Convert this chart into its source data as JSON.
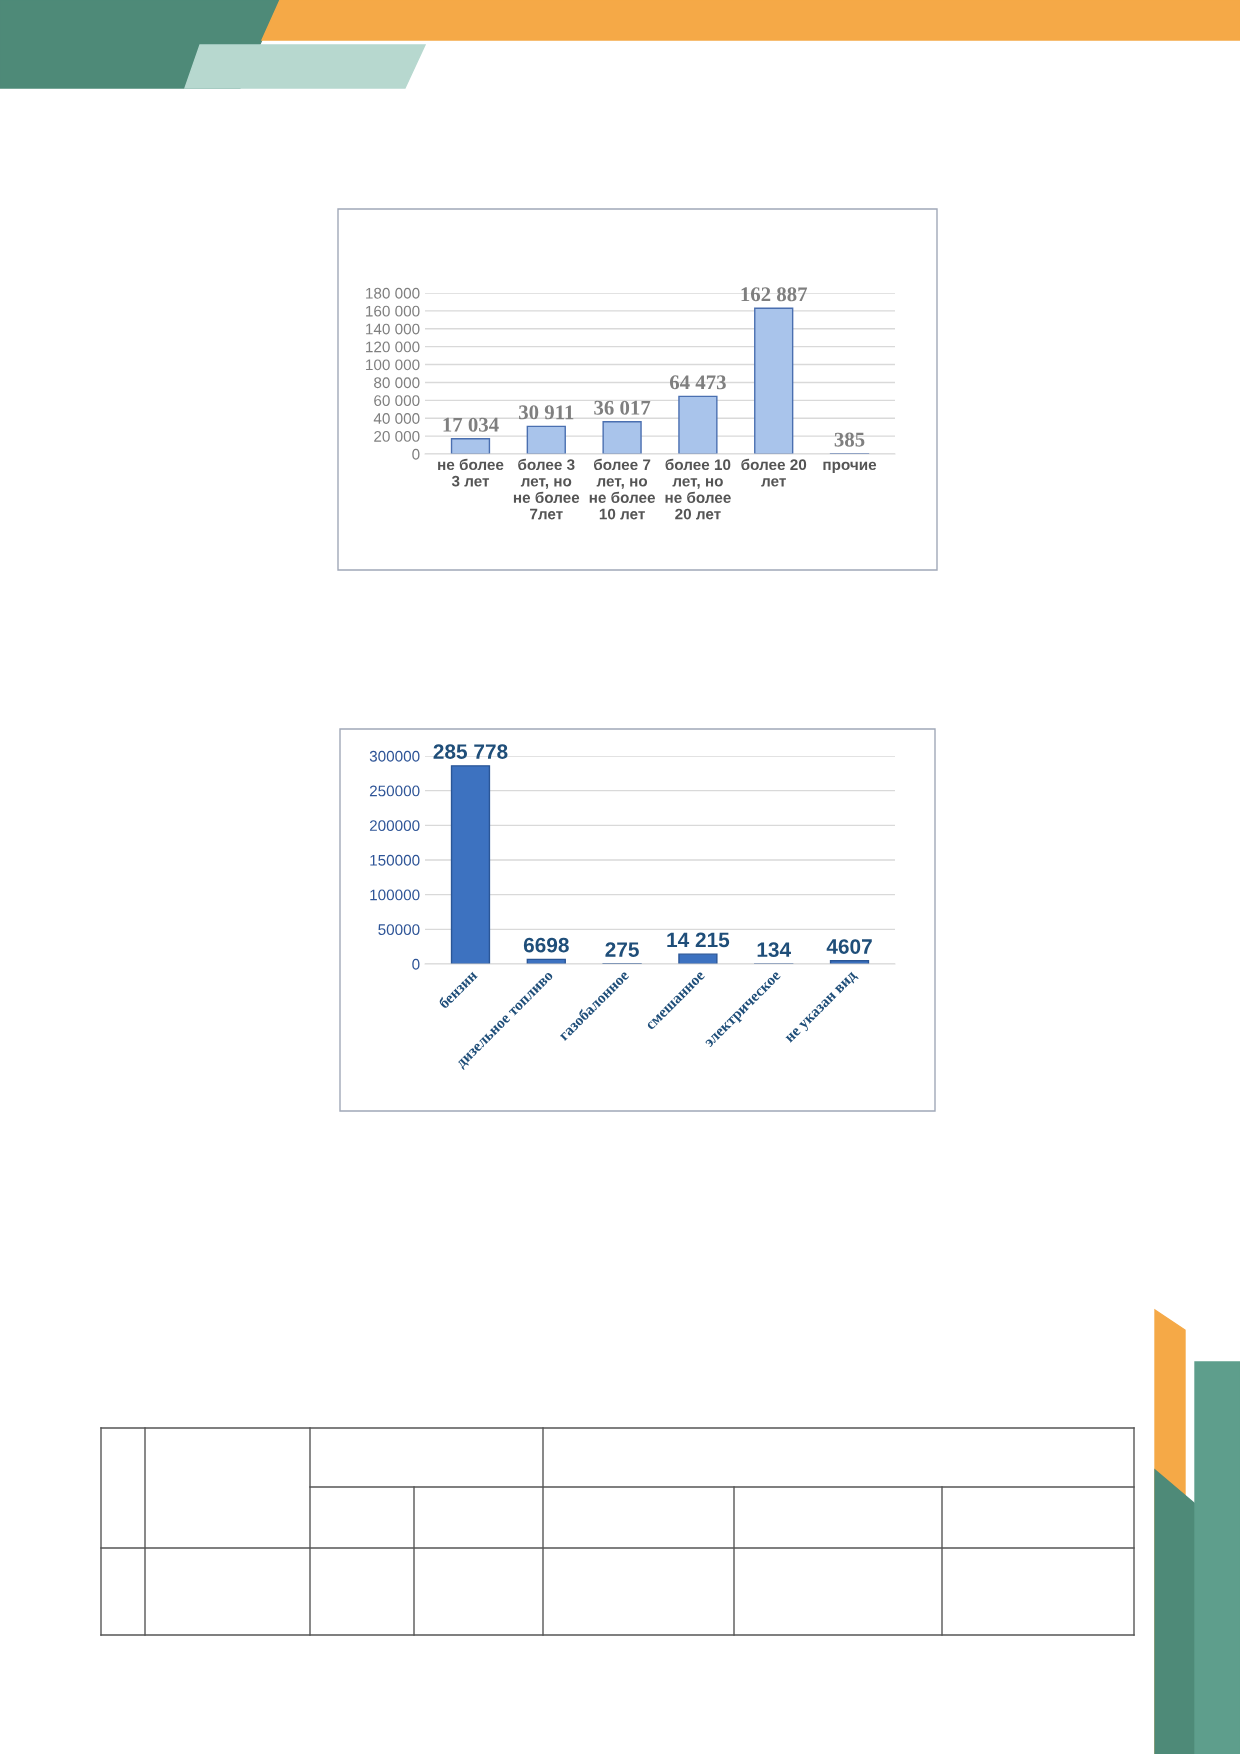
{
  "chart_data": [
    {
      "type": "bar",
      "categories": [
        "не более\n3 лет",
        "более 3\nлет, но\nне более\n7лет",
        "более 7\nлет, но\nне более\n10 лет",
        "более 10\nлет, но\nне более\n20 лет",
        "более 20\nлет",
        "прочие"
      ],
      "values": [
        17034,
        30911,
        36017,
        64473,
        162887,
        385
      ],
      "color": "#a9c4eb",
      "value_labels": [
        "17 034",
        "30 911",
        "36 017",
        "64 473",
        "162 887",
        "385"
      ],
      "ylim": [
        0,
        180000
      ],
      "yticks": [
        {
          "value": 0,
          "label": "0"
        },
        {
          "value": 20000,
          "label": "20 000"
        },
        {
          "value": 40000,
          "label": "40 000"
        },
        {
          "value": 60000,
          "label": "60 000"
        },
        {
          "value": 80000,
          "label": "80 000"
        },
        {
          "value": 100000,
          "label": "100 000"
        },
        {
          "value": 120000,
          "label": "120 000"
        },
        {
          "value": 140000,
          "label": "140 000"
        },
        {
          "value": 160000,
          "label": "160 000"
        },
        {
          "value": 180000,
          "label": "180 000"
        }
      ],
      "grid": "y"
    },
    {
      "type": "bar",
      "categories": [
        "бензин",
        "дизельное топливо",
        "газобалонное",
        "смешанное",
        "электрическое",
        "не указан вид"
      ],
      "values": [
        285778,
        6698,
        275,
        14215,
        134,
        4607
      ],
      "color": "#3d72c0",
      "value_labels": [
        "285 778",
        "6698",
        "275",
        "14 215",
        "134",
        "4607"
      ],
      "ylim": [
        0,
        300000
      ],
      "yticks": [
        0,
        50000,
        100000,
        150000,
        200000,
        250000,
        300000
      ],
      "grid": "y"
    }
  ]
}
